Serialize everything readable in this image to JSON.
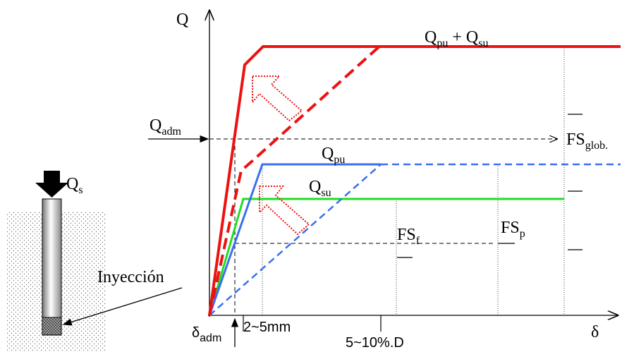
{
  "labels": {
    "axis_y": "Q",
    "axis_x": "δ",
    "q_total": [
      "Q",
      "pu",
      " + ",
      "Q",
      "su"
    ],
    "q_adm": [
      "Q",
      "adm"
    ],
    "fs_glob": [
      "FS",
      "glob."
    ],
    "q_pu": [
      "Q",
      "pu"
    ],
    "q_su": [
      "Q",
      "su"
    ],
    "fs_f": [
      "FS",
      "f"
    ],
    "fs_p": [
      "FS",
      "p"
    ],
    "q_s": [
      "Q",
      "s"
    ],
    "inyeccion": "Inyección",
    "delta_adm": [
      "δ",
      "adm"
    ],
    "range_small": "2~5mm",
    "range_large": "5~10%.D"
  }
}
